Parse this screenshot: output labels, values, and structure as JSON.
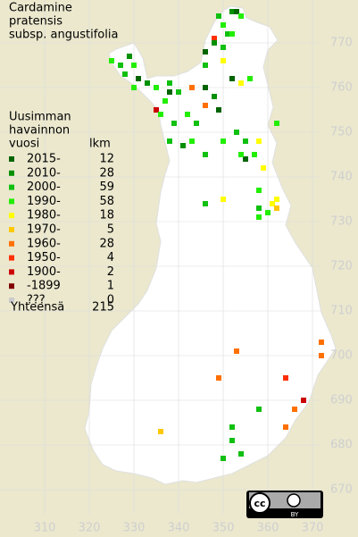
{
  "title": [
    "Cardamine",
    "pratensis",
    "subsp. angustifolia"
  ],
  "legend": {
    "header": [
      "Uusimman",
      "havainnon",
      "vuosi"
    ],
    "count_header": "lkm",
    "classes": [
      {
        "label": "2015-",
        "count": 12,
        "color": "#006400"
      },
      {
        "label": "2010-",
        "count": 28,
        "color": "#009000"
      },
      {
        "label": "2000-",
        "count": 59,
        "color": "#10c010"
      },
      {
        "label": "1990-",
        "count": 58,
        "color": "#22ee00"
      },
      {
        "label": "1980-",
        "count": 18,
        "color": "#ffff00"
      },
      {
        "label": "1970-",
        "count": 5,
        "color": "#ffc800"
      },
      {
        "label": "1960-",
        "count": 28,
        "color": "#ff7000"
      },
      {
        "label": "1950-",
        "count": 4,
        "color": "#ff3000"
      },
      {
        "label": "1900-",
        "count": 2,
        "color": "#cc0000"
      },
      {
        "label": "-1899",
        "count": 1,
        "color": "#800000"
      },
      {
        "label": "???",
        "count": 0,
        "color": "#cccccc"
      }
    ],
    "total_label": "Yhteensä",
    "total": 215
  },
  "map": {
    "xlim": [
      300,
      380.2
    ],
    "ylim": [
      659.4,
      779.6
    ],
    "xticks": [
      310,
      320,
      330,
      340,
      350,
      360,
      370
    ],
    "yticks": [
      670,
      680,
      690,
      700,
      710,
      720,
      730,
      740,
      750,
      760,
      770
    ],
    "points": [
      [
        352,
        777,
        1
      ],
      [
        353,
        777,
        0
      ],
      [
        354,
        776,
        3
      ],
      [
        349,
        776,
        2
      ],
      [
        350,
        774,
        3
      ],
      [
        348,
        771,
        7
      ],
      [
        348,
        770,
        1
      ],
      [
        351,
        772,
        2
      ],
      [
        352,
        772,
        3
      ],
      [
        350,
        769,
        2
      ],
      [
        346,
        768,
        0
      ],
      [
        346,
        765,
        2
      ],
      [
        350,
        766,
        4
      ],
      [
        352,
        762,
        0
      ],
      [
        354,
        761,
        4
      ],
      [
        356,
        762,
        3
      ],
      [
        325,
        766,
        3
      ],
      [
        327,
        765,
        2
      ],
      [
        329,
        767,
        1
      ],
      [
        330,
        765,
        3
      ],
      [
        328,
        763,
        2
      ],
      [
        331,
        762,
        0
      ],
      [
        330,
        760,
        3
      ],
      [
        333,
        761,
        1
      ],
      [
        335,
        760,
        3
      ],
      [
        338,
        761,
        2
      ],
      [
        338,
        759,
        0
      ],
      [
        337,
        757,
        3
      ],
      [
        340,
        759,
        2
      ],
      [
        343,
        760,
        6
      ],
      [
        346,
        760,
        0
      ],
      [
        348,
        758,
        1
      ],
      [
        346,
        756,
        6
      ],
      [
        349,
        755,
        0
      ],
      [
        335,
        755,
        8
      ],
      [
        336,
        754,
        3
      ],
      [
        339,
        752,
        2
      ],
      [
        342,
        754,
        3
      ],
      [
        344,
        752,
        2
      ],
      [
        338,
        748,
        2
      ],
      [
        341,
        747,
        1
      ],
      [
        343,
        748,
        3
      ],
      [
        346,
        745,
        2
      ],
      [
        350,
        748,
        3
      ],
      [
        353,
        750,
        2
      ],
      [
        355,
        748,
        2
      ],
      [
        358,
        748,
        4
      ],
      [
        357,
        745,
        3
      ],
      [
        359,
        742,
        4
      ],
      [
        355,
        744,
        0
      ],
      [
        354,
        745,
        3
      ],
      [
        362,
        752,
        3
      ],
      [
        358,
        737,
        3
      ],
      [
        361,
        734,
        4
      ],
      [
        362,
        735,
        4
      ],
      [
        362,
        733,
        5
      ],
      [
        360,
        732,
        3
      ],
      [
        358,
        733,
        2
      ],
      [
        358,
        731,
        3
      ],
      [
        350,
        735,
        4
      ],
      [
        346,
        734,
        2
      ],
      [
        353,
        701,
        6
      ],
      [
        372,
        703,
        6
      ],
      [
        372,
        700,
        6
      ],
      [
        364,
        695,
        7
      ],
      [
        368,
        690,
        8
      ],
      [
        366,
        688,
        6
      ],
      [
        364,
        684,
        6
      ],
      [
        358,
        688,
        2
      ],
      [
        352,
        684,
        2
      ],
      [
        352,
        681,
        2
      ],
      [
        354,
        678,
        2
      ],
      [
        350,
        677,
        2
      ],
      [
        336,
        683,
        5
      ],
      [
        349,
        695,
        6
      ]
    ]
  },
  "license": {
    "mark": "cc",
    "label": "BY"
  }
}
